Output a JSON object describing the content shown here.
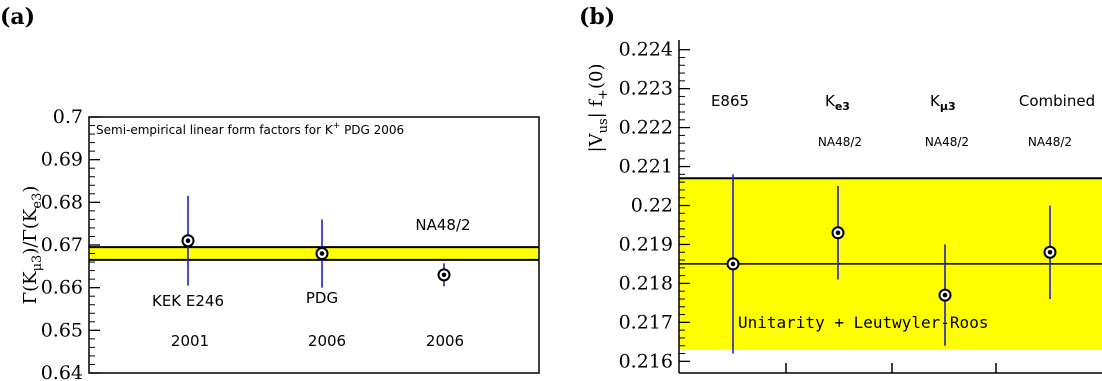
{
  "chart_data": [
    {
      "panel": "(a)",
      "type": "scatter",
      "title": "Semi-empirical linear form factors for K",
      "title_sup": "+",
      "title_tail": " PDG 2006",
      "ylabel": "Γ(K",
      "ylabel_sub1": "μ3",
      "ylabel_mid": ")/Γ(K",
      "ylabel_sub2": "e3",
      "ylabel_tail": ")",
      "ylim": [
        0.64,
        0.7
      ],
      "yticks": [
        0.64,
        0.65,
        0.66,
        0.67,
        0.68,
        0.69,
        0.7
      ],
      "ytick_labels": [
        "0.64",
        "0.65",
        "0.66",
        "0.67",
        "0.68",
        "0.69",
        "0.7"
      ],
      "band": {
        "low": 0.6665,
        "high": 0.6695,
        "color": "#ffff00"
      },
      "band_lines": [
        0.6665,
        0.6695
      ],
      "points": [
        {
          "x": 1,
          "y": 0.671,
          "err": 0.0105,
          "label": "KEK E246",
          "year": "2001"
        },
        {
          "x": 2,
          "y": 0.668,
          "err": 0.008,
          "label": "PDG",
          "year": "2006"
        },
        {
          "x": 3,
          "y": 0.663,
          "err": 0.0027,
          "label": "NA48/2",
          "year": "2006"
        }
      ]
    },
    {
      "panel": "(b)",
      "type": "scatter",
      "ylabel": "|V",
      "ylabel_sub1": "us",
      "ylabel_mid": "| f",
      "ylabel_sub2": "+",
      "ylabel_tail": "(0)",
      "ylim": [
        0.2157,
        0.2243
      ],
      "yticks": [
        0.216,
        0.217,
        0.218,
        0.219,
        0.22,
        0.221,
        0.222,
        0.223,
        0.224
      ],
      "ytick_labels": [
        "0.216",
        "0.217",
        "0.218",
        "0.219",
        "0.22",
        "0.221",
        "0.222",
        "0.223",
        "0.224"
      ],
      "band": {
        "low": 0.2163,
        "high": 0.2207,
        "color": "#ffff00"
      },
      "band_lines": [
        0.2207
      ],
      "center_line": 0.2185,
      "band_label": "Unitarity + Leutwyler-Roos",
      "points": [
        {
          "x": 1,
          "y": 0.2185,
          "err": 0.0023,
          "label": "E865",
          "sublabel": ""
        },
        {
          "x": 2,
          "y": 0.2193,
          "err": 0.0012,
          "label": "K",
          "label_sub": "e3",
          "sublabel": "NA48/2"
        },
        {
          "x": 3,
          "y": 0.2177,
          "err": 0.0013,
          "label": "K",
          "label_sub": "μ3",
          "sublabel": "NA48/2"
        },
        {
          "x": 4,
          "y": 0.2188,
          "err": 0.0012,
          "label": "Combined",
          "sublabel": "NA48/2"
        }
      ]
    }
  ]
}
